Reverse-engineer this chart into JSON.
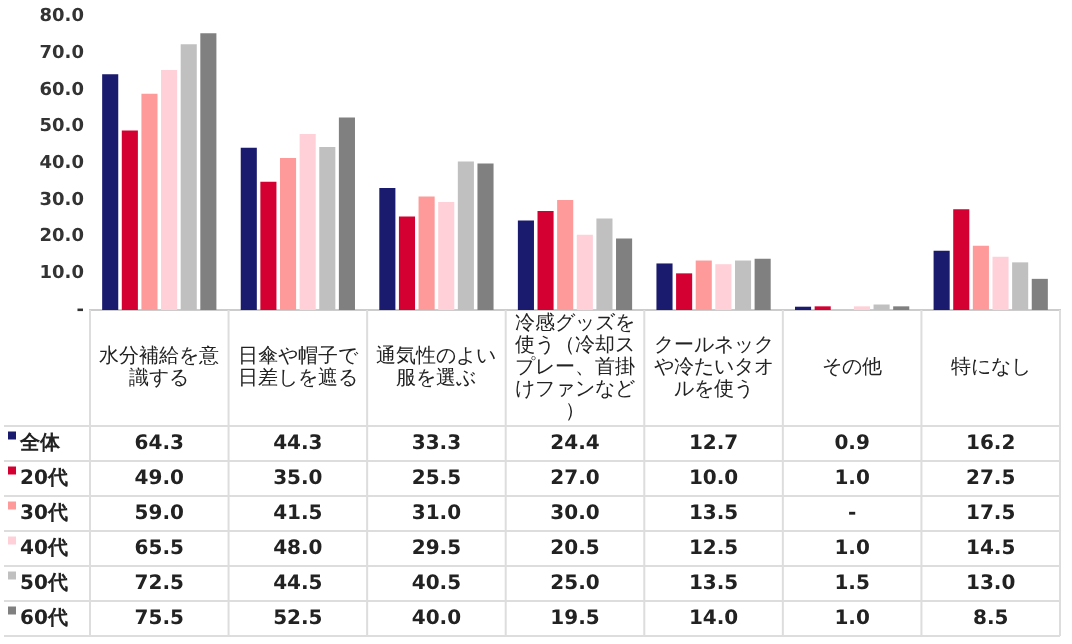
{
  "chart_data": {
    "type": "bar",
    "categories": [
      "水分補給を意識する",
      "日傘や帽子で日差しを遮る",
      "通気性のよい服を選ぶ",
      "冷感グッズを使う（冷却スプレー、首掛けファンなど）",
      "クールネックや冷たいタオルを使う",
      "その他",
      "特になし"
    ],
    "series": [
      {
        "name": "全体",
        "color": "#1a1a6e",
        "values": [
          64.3,
          44.3,
          33.3,
          24.4,
          12.7,
          0.9,
          16.2
        ],
        "value_labels": [
          "64.3",
          "44.3",
          "33.3",
          "24.4",
          "12.7",
          "0.9",
          "16.2"
        ]
      },
      {
        "name": "20代",
        "color": "#d50032",
        "values": [
          49.0,
          35.0,
          25.5,
          27.0,
          10.0,
          1.0,
          27.5
        ],
        "value_labels": [
          "49.0",
          "35.0",
          "25.5",
          "27.0",
          "10.0",
          "1.0",
          "27.5"
        ]
      },
      {
        "name": "30代",
        "color": "#ff9a9a",
        "values": [
          59.0,
          41.5,
          31.0,
          30.0,
          13.5,
          null,
          17.5
        ],
        "value_labels": [
          "59.0",
          "41.5",
          "31.0",
          "30.0",
          "13.5",
          "-",
          "17.5"
        ]
      },
      {
        "name": "40代",
        "color": "#ffd0d8",
        "values": [
          65.5,
          48.0,
          29.5,
          20.5,
          12.5,
          1.0,
          14.5
        ],
        "value_labels": [
          "65.5",
          "48.0",
          "29.5",
          "20.5",
          "12.5",
          "1.0",
          "14.5"
        ]
      },
      {
        "name": "50代",
        "color": "#c0c0c0",
        "values": [
          72.5,
          44.5,
          40.5,
          25.0,
          13.5,
          1.5,
          13.0
        ],
        "value_labels": [
          "72.5",
          "44.5",
          "40.5",
          "25.0",
          "13.5",
          "1.5",
          "13.0"
        ]
      },
      {
        "name": "60代",
        "color": "#808080",
        "values": [
          75.5,
          52.5,
          40.0,
          19.5,
          14.0,
          1.0,
          8.5
        ],
        "value_labels": [
          "75.5",
          "52.5",
          "40.0",
          "19.5",
          "14.0",
          "1.0",
          "8.5"
        ]
      }
    ],
    "ylim": [
      0,
      80
    ],
    "yticks": [
      {
        "value": 0,
        "label": "-"
      },
      {
        "value": 10,
        "label": "10.0"
      },
      {
        "value": 20,
        "label": "20.0"
      },
      {
        "value": 30,
        "label": "30.0"
      },
      {
        "value": 40,
        "label": "40.0"
      },
      {
        "value": 50,
        "label": "50.0"
      },
      {
        "value": 60,
        "label": "60.0"
      },
      {
        "value": 70,
        "label": "70.0"
      },
      {
        "value": 80,
        "label": "80.0"
      }
    ],
    "grid": false,
    "legend": "bottom left"
  }
}
